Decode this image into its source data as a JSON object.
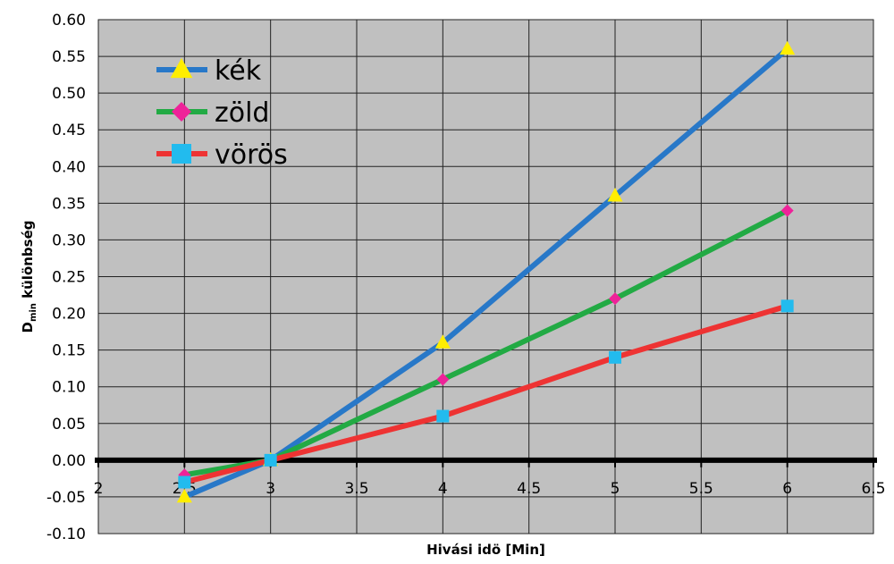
{
  "chart_data": {
    "type": "line",
    "xlabel": "Hivási idö [Min]",
    "ylabel_main": "D",
    "ylabel_sub": "min",
    "ylabel_rest": " különbség",
    "xlim": [
      2,
      6.5
    ],
    "ylim": [
      -0.1,
      0.6
    ],
    "xticks": [
      "2",
      "2.5",
      "3",
      "3.5",
      "4",
      "4.5",
      "5",
      "5.5",
      "6",
      "6.5"
    ],
    "yticks": [
      "-0.10",
      "-0.05",
      "0.00",
      "0.05",
      "0.10",
      "0.15",
      "0.20",
      "0.25",
      "0.30",
      "0.35",
      "0.40",
      "0.45",
      "0.50",
      "0.55",
      "0.60"
    ],
    "grid": true,
    "legend_position": "top-left",
    "x": [
      2.5,
      3,
      4,
      5,
      6
    ],
    "series": [
      {
        "name": "kék",
        "values": [
          -0.05,
          0.0,
          0.16,
          0.36,
          0.56
        ],
        "color": "#2878c8",
        "marker": "triangle",
        "marker_color": "#ffee00"
      },
      {
        "name": "zöld",
        "values": [
          -0.02,
          0.0,
          0.11,
          0.22,
          0.34
        ],
        "color": "#22aa44",
        "marker": "diamond",
        "marker_color": "#ee2299"
      },
      {
        "name": "vörös",
        "values": [
          -0.03,
          0.0,
          0.06,
          0.14,
          0.21
        ],
        "color": "#ee3333",
        "marker": "square",
        "marker_color": "#22bbee"
      }
    ]
  },
  "colors": {
    "plot_background": "#c0c0c0",
    "grid": "#222222",
    "zero_line": "#000000"
  }
}
